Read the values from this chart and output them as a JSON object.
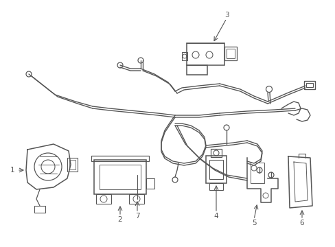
{
  "background_color": "#ffffff",
  "line_color": "#555555",
  "label_color": "#000000",
  "line_width": 1.1,
  "fig_width": 4.89,
  "fig_height": 3.6,
  "dpi": 100
}
